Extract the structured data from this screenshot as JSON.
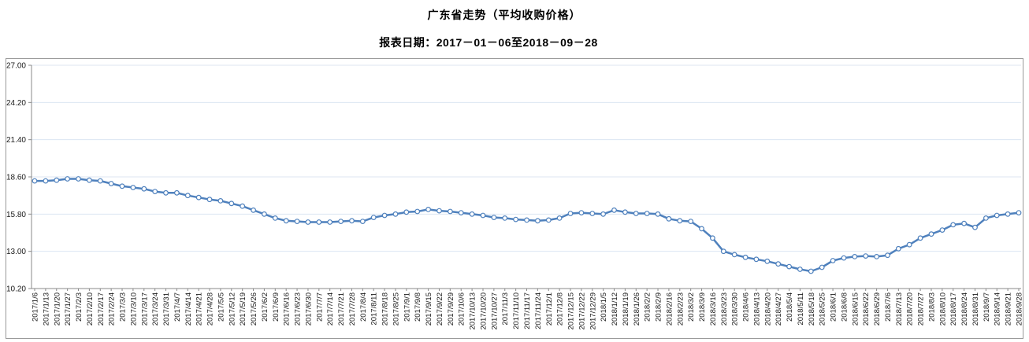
{
  "header": {
    "title": "广东省走势（平均收购价格）",
    "subtitle": "报表日期：2017－01－06至2018－09－28"
  },
  "chart_data": {
    "type": "line",
    "title": "广东省走势（平均收购价格）",
    "legend": "none",
    "grid": true,
    "x_label_rotation": -90,
    "ylim": [
      10.2,
      27.0
    ],
    "yticks": [
      27.0,
      24.2,
      21.4,
      18.6,
      15.8,
      13.0,
      10.2
    ],
    "y_tick_labels": [
      "27.00",
      "24.20",
      "21.40",
      "18.60",
      "15.80",
      "13.00",
      "10.20"
    ],
    "x": [
      "2017/1/6",
      "2017/1/13",
      "2017/1/20",
      "2017/1/27",
      "2017/2/3",
      "2017/2/10",
      "2017/2/17",
      "2017/2/24",
      "2017/3/3",
      "2017/3/10",
      "2017/3/17",
      "2017/3/24",
      "2017/3/31",
      "2017/4/7",
      "2017/4/14",
      "2017/4/21",
      "2017/4/28",
      "2017/5/5",
      "2017/5/12",
      "2017/5/19",
      "2017/5/26",
      "2017/6/2",
      "2017/6/9",
      "2017/6/16",
      "2017/6/23",
      "2017/6/30",
      "2017/7/7",
      "2017/7/14",
      "2017/7/21",
      "2017/7/28",
      "2017/8/4",
      "2017/8/11",
      "2017/8/18",
      "2017/8/25",
      "2017/9/1",
      "2017/9/8",
      "2017/9/15",
      "2017/9/22",
      "2017/9/29",
      "2017/10/6",
      "2017/10/13",
      "2017/10/20",
      "2017/10/27",
      "2017/11/3",
      "2017/11/10",
      "2017/11/17",
      "2017/11/24",
      "2017/12/1",
      "2017/12/8",
      "2017/12/15",
      "2017/12/22",
      "2017/12/29",
      "2018/1/5",
      "2018/1/12",
      "2018/1/19",
      "2018/1/26",
      "2018/2/2",
      "2018/2/9",
      "2018/2/16",
      "2018/2/23",
      "2018/3/2",
      "2018/3/9",
      "2018/3/16",
      "2018/3/23",
      "2018/3/30",
      "2018/4/6",
      "2018/4/13",
      "2018/4/20",
      "2018/4/27",
      "2018/5/4",
      "2018/5/11",
      "2018/5/18",
      "2018/5/25",
      "2018/6/1",
      "2018/6/8",
      "2018/6/15",
      "2018/6/22",
      "2018/6/29",
      "2018/7/6",
      "2018/7/13",
      "2018/7/20",
      "2018/7/27",
      "2018/8/3",
      "2018/8/10",
      "2018/8/17",
      "2018/8/24",
      "2018/8/31",
      "2018/9/7",
      "2018/9/14",
      "2018/9/21",
      "2018/9/28"
    ],
    "series": [
      {
        "name": "平均收购价格",
        "color": "#4f81bd",
        "marker": "hollow-circle",
        "values": [
          18.3,
          18.3,
          18.35,
          18.45,
          18.45,
          18.35,
          18.3,
          18.1,
          17.9,
          17.8,
          17.7,
          17.5,
          17.4,
          17.4,
          17.2,
          17.05,
          16.9,
          16.8,
          16.6,
          16.4,
          16.1,
          15.8,
          15.5,
          15.3,
          15.25,
          15.2,
          15.2,
          15.2,
          15.25,
          15.3,
          15.25,
          15.55,
          15.7,
          15.8,
          15.95,
          16.0,
          16.15,
          16.05,
          16.0,
          15.9,
          15.8,
          15.7,
          15.55,
          15.5,
          15.4,
          15.35,
          15.3,
          15.35,
          15.5,
          15.85,
          15.9,
          15.85,
          15.8,
          16.1,
          15.95,
          15.85,
          15.85,
          15.8,
          15.45,
          15.3,
          15.25,
          14.7,
          14.0,
          13.0,
          12.75,
          12.55,
          12.4,
          12.25,
          12.05,
          11.85,
          11.65,
          11.5,
          11.8,
          12.3,
          12.5,
          12.6,
          12.65,
          12.6,
          12.7,
          13.2,
          13.5,
          14.0,
          14.3,
          14.6,
          15.0,
          15.1,
          14.8,
          15.5,
          15.7,
          15.8,
          15.9
        ]
      }
    ],
    "colors": {
      "line": "#4f81bd",
      "marker_fill": "#ffffff",
      "grid": "#dce6f2",
      "axis": "#898989",
      "tick_text": "#1a1a1a"
    }
  }
}
